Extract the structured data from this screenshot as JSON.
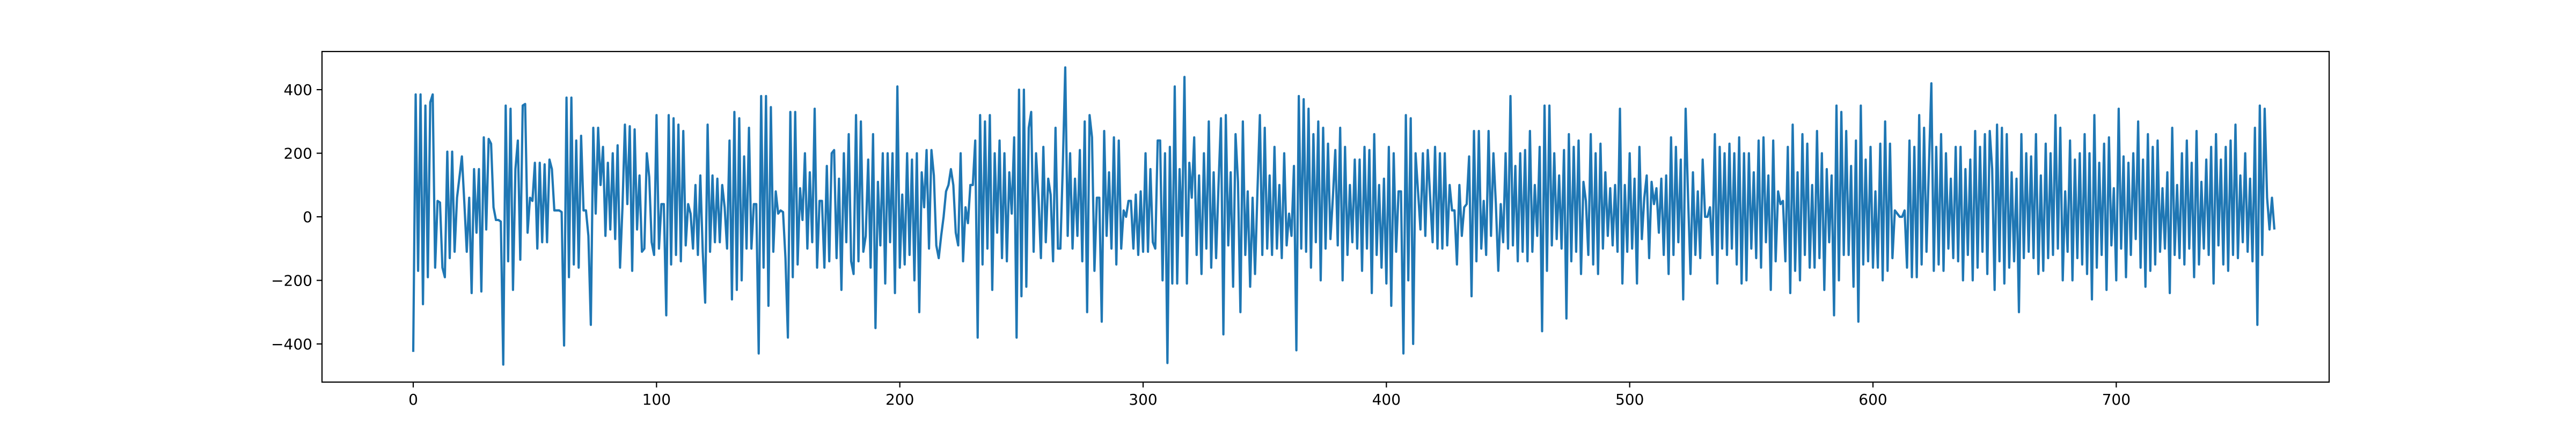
{
  "chart_data": {
    "type": "line",
    "title": "",
    "xlabel": "",
    "ylabel": "",
    "xlim": [
      -37.5,
      787.5
    ],
    "ylim": [
      -520,
      520
    ],
    "grid": false,
    "xticks": [
      0,
      100,
      200,
      300,
      400,
      500,
      600,
      700
    ],
    "xtick_labels": [
      "0",
      "100",
      "200",
      "300",
      "400",
      "500",
      "600",
      "700"
    ],
    "yticks": [
      -400,
      -200,
      0,
      200,
      400
    ],
    "ytick_labels": [
      "−400",
      "−200",
      "0",
      "200",
      "400"
    ],
    "series": [
      {
        "color": "#1f77b4",
        "x_start": 0,
        "x_step": 1,
        "values": [
          -425,
          385,
          -170,
          385,
          -275,
          350,
          -190,
          360,
          385,
          -160,
          50,
          45,
          -160,
          -190,
          205,
          -130,
          205,
          -110,
          60,
          125,
          190,
          45,
          -110,
          60,
          -240,
          150,
          -50,
          150,
          -235,
          250,
          -40,
          245,
          230,
          30,
          -10,
          -10,
          -15,
          -465,
          350,
          -140,
          340,
          -230,
          150,
          240,
          -135,
          350,
          355,
          -50,
          60,
          50,
          170,
          -100,
          170,
          -80,
          165,
          -80,
          180,
          150,
          20,
          20,
          20,
          15,
          -405,
          375,
          -190,
          375,
          -150,
          240,
          -160,
          255,
          20,
          20,
          -60,
          -340,
          280,
          10,
          280,
          100,
          220,
          -60,
          170,
          -40,
          200,
          -70,
          225,
          -160,
          30,
          290,
          40,
          285,
          -170,
          275,
          -40,
          130,
          -110,
          -100,
          200,
          125,
          -80,
          -120,
          320,
          -100,
          40,
          40,
          -310,
          320,
          -150,
          310,
          -120,
          290,
          -140,
          270,
          -90,
          40,
          10,
          -100,
          100,
          -120,
          130,
          -110,
          -270,
          290,
          -110,
          130,
          -80,
          120,
          -80,
          100,
          30,
          -100,
          240,
          -260,
          330,
          -230,
          310,
          -200,
          190,
          -100,
          280,
          -100,
          40,
          40,
          -430,
          380,
          -160,
          380,
          -280,
          345,
          -110,
          80,
          10,
          20,
          15,
          -130,
          -380,
          330,
          -190,
          330,
          -150,
          90,
          -10,
          200,
          -100,
          140,
          -80,
          340,
          -160,
          50,
          50,
          -160,
          160,
          -140,
          200,
          210,
          -130,
          120,
          -230,
          200,
          -80,
          260,
          -140,
          -180,
          320,
          -140,
          300,
          -110,
          -60,
          180,
          -160,
          260,
          -350,
          110,
          -90,
          200,
          -210,
          200,
          -80,
          200,
          -240,
          410,
          -160,
          70,
          -150,
          200,
          -120,
          180,
          -200,
          200,
          -300,
          140,
          30,
          210,
          -100,
          210,
          130,
          -90,
          -130,
          -60,
          0,
          80,
          100,
          150,
          100,
          -50,
          -90,
          200,
          -140,
          30,
          -20,
          100,
          100,
          240,
          -380,
          320,
          -150,
          300,
          -100,
          320,
          -230,
          200,
          -50,
          240,
          -130,
          200,
          -140,
          140,
          10,
          250,
          -380,
          400,
          -250,
          400,
          -220,
          280,
          330,
          -110,
          200,
          60,
          -130,
          220,
          -80,
          120,
          70,
          -140,
          280,
          -100,
          -100,
          160,
          470,
          -60,
          200,
          -100,
          120,
          -60,
          210,
          -140,
          300,
          -300,
          320,
          250,
          -170,
          60,
          60,
          -330,
          270,
          -60,
          140,
          -100,
          250,
          -150,
          240,
          -100,
          20,
          0,
          50,
          50,
          -100,
          70,
          -120,
          80,
          -110,
          200,
          -110,
          150,
          -80,
          -100,
          240,
          240,
          -200,
          200,
          -460,
          220,
          -210,
          410,
          -210,
          150,
          -60,
          440,
          -210,
          170,
          60,
          250,
          -120,
          130,
          -180,
          200,
          -100,
          300,
          -160,
          140,
          -130,
          100,
          310,
          -370,
          320,
          -90,
          140,
          -220,
          260,
          110,
          -300,
          300,
          -120,
          80,
          -220,
          60,
          -180,
          80,
          320,
          -120,
          280,
          -100,
          130,
          -120,
          220,
          -100,
          100,
          -130,
          200,
          -90,
          10,
          -60,
          160,
          -420,
          380,
          -100,
          370,
          -110,
          340,
          -160,
          260,
          -80,
          300,
          -200,
          280,
          -100,
          230,
          -70,
          60,
          210,
          -90,
          280,
          -200,
          220,
          -120,
          100,
          -80,
          180,
          -100,
          180,
          -170,
          220,
          -100,
          210,
          -240,
          260,
          -120,
          100,
          -160,
          120,
          -210,
          220,
          -280,
          200,
          -110,
          80,
          80,
          -430,
          320,
          -200,
          310,
          -400,
          200,
          80,
          -40,
          200,
          -60,
          210,
          60,
          -80,
          220,
          -100,
          200,
          -100,
          200,
          -90,
          100,
          20,
          20,
          -150,
          100,
          -60,
          30,
          40,
          190,
          -250,
          270,
          -140,
          270,
          -100,
          50,
          -120,
          270,
          -60,
          200,
          40,
          -170,
          40,
          -80,
          200,
          -100,
          380,
          -90,
          160,
          -140,
          200,
          -110,
          210,
          -140,
          270,
          -110,
          100,
          -60,
          220,
          -360,
          350,
          -170,
          350,
          -90,
          200,
          -70,
          130,
          -100,
          210,
          -320,
          260,
          -140,
          220,
          -110,
          240,
          -180,
          110,
          50,
          -120,
          260,
          -150,
          200,
          -180,
          230,
          -100,
          140,
          -60,
          90,
          -90,
          100,
          -110,
          340,
          -210,
          100,
          -110,
          200,
          -100,
          120,
          -210,
          220,
          -70,
          60,
          130,
          -130,
          110,
          40,
          90,
          -50,
          120,
          -120,
          130,
          -180,
          250,
          -120,
          220,
          -80,
          180,
          -260,
          340,
          60,
          -180,
          140,
          -120,
          80,
          -130,
          180,
          0,
          0,
          30,
          -120,
          260,
          -210,
          220,
          -100,
          200,
          -120,
          230,
          -100,
          200,
          -150,
          250,
          -210,
          200,
          -200,
          200,
          -100,
          140,
          -130,
          240,
          -160,
          250,
          -80,
          130,
          -230,
          240,
          -140,
          80,
          40,
          50,
          -140,
          220,
          -240,
          290,
          -170,
          140,
          -200,
          260,
          -120,
          230,
          -160,
          100,
          -160,
          270,
          -130,
          200,
          -230,
          150,
          -80,
          130,
          -310,
          350,
          -200,
          330,
          -120,
          270,
          -120,
          160,
          -220,
          240,
          -330,
          350,
          -150,
          180,
          -140,
          220,
          -160,
          80,
          -160,
          230,
          -200,
          300,
          -170,
          230,
          -130,
          20,
          10,
          0,
          0,
          20,
          -160,
          240,
          -190,
          220,
          -190,
          320,
          -150,
          280,
          -110,
          160,
          420,
          -170,
          220,
          -150,
          260,
          -170,
          200,
          -100,
          120,
          -130,
          220,
          -140,
          220,
          -200,
          150,
          -120,
          180,
          -200,
          270,
          -160,
          220,
          -110,
          260,
          -180,
          270,
          150,
          -230,
          290,
          -140,
          280,
          -210,
          260,
          -160,
          140,
          -140,
          120,
          -300,
          260,
          -130,
          200,
          -110,
          190,
          -130,
          260,
          -180,
          130,
          -170,
          230,
          -130,
          200,
          -120,
          320,
          -100,
          280,
          -200,
          80,
          -110,
          240,
          -200,
          180,
          -130,
          200,
          -150,
          260,
          -180,
          200,
          -260,
          320,
          -160,
          170,
          -120,
          230,
          -230,
          250,
          -90,
          90,
          -200,
          340,
          -100,
          190,
          -190,
          170,
          -120,
          200,
          -70,
          300,
          -160,
          180,
          -220,
          260,
          -170,
          220,
          -150,
          240,
          -110,
          90,
          -100,
          140,
          -240,
          280,
          -120,
          100,
          -130,
          200,
          -150,
          240,
          -100,
          170,
          -190,
          270,
          -150,
          110,
          -100,
          180,
          -120,
          220,
          -210,
          260,
          -90,
          180,
          -150,
          220,
          -170,
          240,
          -120,
          290,
          -130,
          130,
          -80,
          200,
          -110,
          120,
          -140,
          280,
          -340,
          350,
          -120,
          340,
          60,
          -40,
          60,
          -40
        ]
      }
    ]
  }
}
